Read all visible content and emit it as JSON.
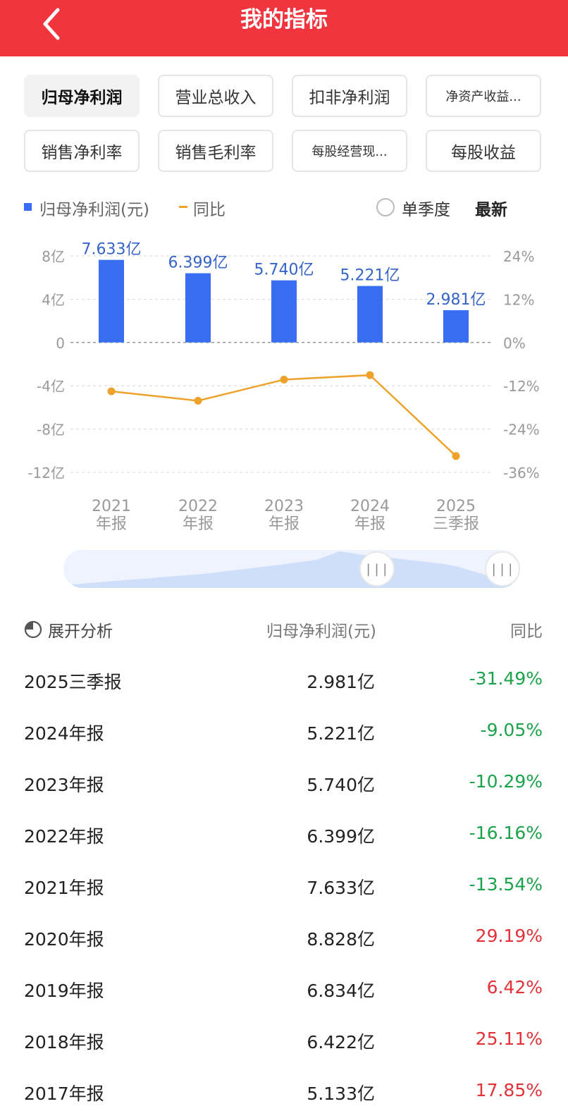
{
  "header": {
    "title": "我的指标"
  },
  "tabs": [
    {
      "label": "归母净利润",
      "active": true
    },
    {
      "label": "营业总收入"
    },
    {
      "label": "扣非净利润"
    },
    {
      "label": "净资产收益...",
      "small": true
    },
    {
      "label": "销售净利率"
    },
    {
      "label": "销售毛利率"
    },
    {
      "label": "每股经营现...",
      "small": true
    },
    {
      "label": "每股收益"
    }
  ],
  "legend": {
    "bar_label": "归母净利润(元)",
    "line_label": "同比",
    "single_quarter": "单季度",
    "latest": "最新"
  },
  "colors": {
    "header": "#f0353e",
    "bar": "#3a6ef2",
    "line": "#eea22a",
    "negative": "#1aa34a",
    "positive": "#e2323a"
  },
  "chart_data": {
    "type": "bar+line",
    "categories": [
      [
        "2021",
        "年报"
      ],
      [
        "2022",
        "年报"
      ],
      [
        "2023",
        "年报"
      ],
      [
        "2024",
        "年报"
      ],
      [
        "2025",
        "三季报"
      ]
    ],
    "series": [
      {
        "name": "归母净利润(元)",
        "type": "bar",
        "axis": "left",
        "values": [
          7.633,
          6.399,
          5.74,
          5.221,
          2.981
        ],
        "labels": [
          "7.633亿",
          "6.399亿",
          "5.740亿",
          "5.221亿",
          "2.981亿"
        ]
      },
      {
        "name": "同比",
        "type": "line",
        "axis": "right",
        "values": [
          -13.54,
          -16.16,
          -10.29,
          -9.05,
          -31.49
        ]
      }
    ],
    "left_axis": {
      "ticks": [
        8,
        4,
        0,
        -4,
        -8,
        -12
      ],
      "tick_labels": [
        "8亿",
        "4亿",
        "0",
        "-4亿",
        "-8亿",
        "-12亿"
      ],
      "range": [
        -12,
        8
      ]
    },
    "right_axis": {
      "ticks": [
        24,
        12,
        0,
        -12,
        -24,
        -36
      ],
      "tick_labels": [
        "24%",
        "12%",
        "0%",
        "-12%",
        "-24%",
        "-36%"
      ],
      "range": [
        -36,
        24
      ]
    },
    "zero_line": "dashed"
  },
  "table": {
    "analysis_label": "展开分析",
    "value_header": "归母净利润(元)",
    "yoy_header": "同比",
    "rows": [
      {
        "period": "2025三季报",
        "value": "2.981亿",
        "yoy": "-31.49%",
        "sign": "neg"
      },
      {
        "period": "2024年报",
        "value": "5.221亿",
        "yoy": "-9.05%",
        "sign": "neg"
      },
      {
        "period": "2023年报",
        "value": "5.740亿",
        "yoy": "-10.29%",
        "sign": "neg"
      },
      {
        "period": "2022年报",
        "value": "6.399亿",
        "yoy": "-16.16%",
        "sign": "neg"
      },
      {
        "period": "2021年报",
        "value": "7.633亿",
        "yoy": "-13.54%",
        "sign": "neg"
      },
      {
        "period": "2020年报",
        "value": "8.828亿",
        "yoy": "29.19%",
        "sign": "pos"
      },
      {
        "period": "2019年报",
        "value": "6.834亿",
        "yoy": "6.42%",
        "sign": "pos"
      },
      {
        "period": "2018年报",
        "value": "6.422亿",
        "yoy": "25.11%",
        "sign": "pos"
      },
      {
        "period": "2017年报",
        "value": "5.133亿",
        "yoy": "17.85%",
        "sign": "pos"
      }
    ]
  }
}
